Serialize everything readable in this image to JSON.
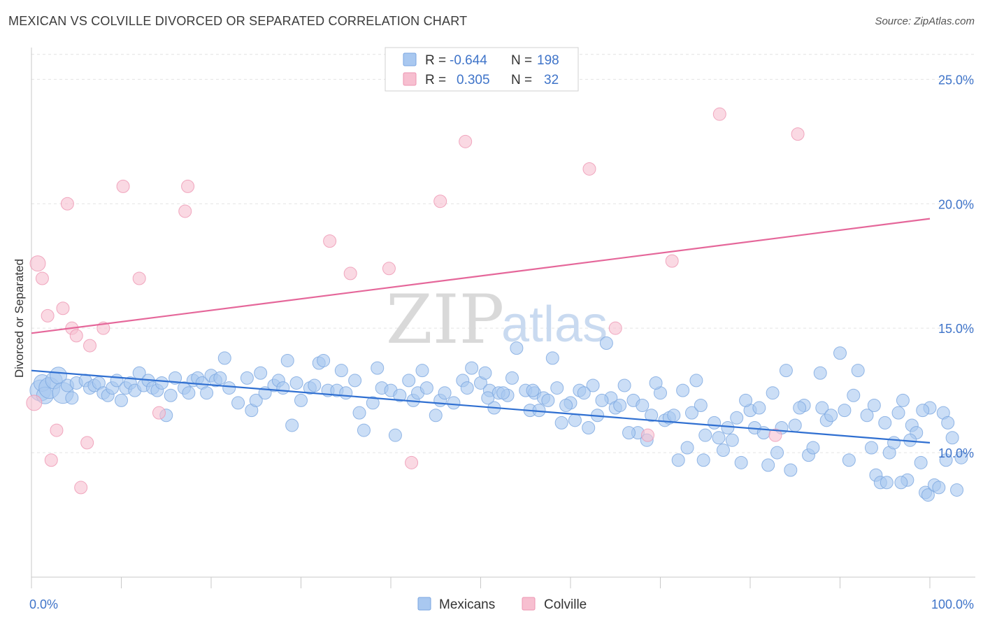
{
  "title": "MEXICAN VS COLVILLE DIVORCED OR SEPARATED CORRELATION CHART",
  "source": "Source: ZipAtlas.com",
  "colors": {
    "blue": "#a9c8f0",
    "blue_stroke": "#7aa6e0",
    "blue_line": "#2f6fd1",
    "pink": "#f7bfd0",
    "pink_stroke": "#ee95b2",
    "pink_line": "#e5679a",
    "axis_text": "#3f74c9"
  },
  "legend": {
    "r_label": "R =",
    "n_label": "N =",
    "rows": [
      {
        "r": "-0.644",
        "n": "198",
        "color": "blue"
      },
      {
        "r": "0.305",
        "n": "32",
        "color": "pink"
      }
    ]
  },
  "bottom_legend": [
    "Mexicans",
    "Colville"
  ],
  "watermark": {
    "zip": "ZIP",
    "atlas": "atlas"
  },
  "chart_data": {
    "type": "scatter",
    "xlabel": "",
    "ylabel": "Divorced or Separated",
    "xlim": [
      0,
      100
    ],
    "ylim": [
      5,
      26.5
    ],
    "x_ticks": [
      {
        "value": 0,
        "label": "0.0%"
      },
      {
        "value": 100,
        "label": "100.0%"
      }
    ],
    "y_ticks": [
      {
        "value": 10,
        "label": "10.0%"
      },
      {
        "value": 15,
        "label": "15.0%"
      },
      {
        "value": 20,
        "label": "20.0%"
      },
      {
        "value": 25,
        "label": "25.0%"
      }
    ],
    "series": [
      {
        "name": "Mexicans",
        "color": "blue",
        "trend": {
          "x": [
            0,
            100
          ],
          "y": [
            13.3,
            10.4
          ]
        },
        "points": [
          [
            1,
            12.5
          ],
          [
            1.2,
            12.8
          ],
          [
            1.5,
            12.3
          ],
          [
            2,
            12.6
          ],
          [
            2.5,
            12.9
          ],
          [
            3,
            13.1
          ],
          [
            3.5,
            12.4
          ],
          [
            4,
            12.7
          ],
          [
            4.5,
            12.2
          ],
          [
            5,
            12.8
          ],
          [
            6,
            12.9
          ],
          [
            6.5,
            12.6
          ],
          [
            7,
            12.7
          ],
          [
            7.5,
            12.8
          ],
          [
            8,
            12.4
          ],
          [
            8.5,
            12.3
          ],
          [
            9,
            12.6
          ],
          [
            9.5,
            12.9
          ],
          [
            10,
            12.1
          ],
          [
            10.5,
            12.6
          ],
          [
            11,
            12.8
          ],
          [
            11.5,
            12.5
          ],
          [
            12,
            13.2
          ],
          [
            12.5,
            12.7
          ],
          [
            13,
            12.9
          ],
          [
            13.5,
            12.6
          ],
          [
            14,
            12.5
          ],
          [
            14.5,
            12.8
          ],
          [
            15,
            11.5
          ],
          [
            15.5,
            12.3
          ],
          [
            16,
            13.0
          ],
          [
            17,
            12.6
          ],
          [
            17.5,
            12.4
          ],
          [
            18,
            12.9
          ],
          [
            18.5,
            13.0
          ],
          [
            19,
            12.8
          ],
          [
            19.5,
            12.4
          ],
          [
            20,
            13.1
          ],
          [
            20.5,
            12.9
          ],
          [
            21,
            13.0
          ],
          [
            21.5,
            13.8
          ],
          [
            22,
            12.6
          ],
          [
            23,
            12.0
          ],
          [
            24,
            13.0
          ],
          [
            24.5,
            11.7
          ],
          [
            25,
            12.1
          ],
          [
            25.5,
            13.2
          ],
          [
            26,
            12.4
          ],
          [
            27,
            12.7
          ],
          [
            27.5,
            12.9
          ],
          [
            28,
            12.6
          ],
          [
            28.5,
            13.7
          ],
          [
            29,
            11.1
          ],
          [
            29.5,
            12.8
          ],
          [
            30,
            12.1
          ],
          [
            31,
            12.6
          ],
          [
            31.5,
            12.7
          ],
          [
            32,
            13.6
          ],
          [
            32.5,
            13.7
          ],
          [
            33,
            12.5
          ],
          [
            34,
            12.5
          ],
          [
            34.5,
            13.3
          ],
          [
            35,
            12.4
          ],
          [
            36,
            12.9
          ],
          [
            36.5,
            11.6
          ],
          [
            37,
            10.9
          ],
          [
            38,
            12.0
          ],
          [
            38.5,
            13.4
          ],
          [
            39,
            12.6
          ],
          [
            40,
            12.5
          ],
          [
            40.5,
            10.7
          ],
          [
            41,
            12.3
          ],
          [
            42,
            12.9
          ],
          [
            42.5,
            12.1
          ],
          [
            43,
            12.4
          ],
          [
            43.5,
            13.3
          ],
          [
            44,
            12.6
          ],
          [
            45,
            11.5
          ],
          [
            45.5,
            12.1
          ],
          [
            46,
            12.4
          ],
          [
            47,
            12.0
          ],
          [
            48,
            12.9
          ],
          [
            48.5,
            12.6
          ],
          [
            49,
            13.4
          ],
          [
            50,
            12.8
          ],
          [
            50.5,
            13.2
          ],
          [
            51,
            12.5
          ],
          [
            51.5,
            11.8
          ],
          [
            52,
            12.4
          ],
          [
            53,
            12.3
          ],
          [
            53.5,
            13.0
          ],
          [
            54,
            14.2
          ],
          [
            55,
            12.5
          ],
          [
            55.5,
            11.7
          ],
          [
            56,
            12.4
          ],
          [
            56.5,
            11.7
          ],
          [
            57,
            12.2
          ],
          [
            58,
            13.8
          ],
          [
            58.5,
            12.6
          ],
          [
            59,
            11.2
          ],
          [
            60,
            12.0
          ],
          [
            60.5,
            11.3
          ],
          [
            61,
            12.5
          ],
          [
            62,
            11.0
          ],
          [
            62.5,
            12.7
          ],
          [
            63,
            11.5
          ],
          [
            64,
            14.4
          ],
          [
            64.5,
            12.2
          ],
          [
            65,
            11.8
          ],
          [
            65.5,
            11.9
          ],
          [
            66,
            12.7
          ],
          [
            67,
            12.1
          ],
          [
            67.5,
            10.8
          ],
          [
            68,
            11.9
          ],
          [
            68.5,
            10.5
          ],
          [
            69,
            11.5
          ],
          [
            70,
            12.4
          ],
          [
            70.5,
            11.3
          ],
          [
            71,
            11.4
          ],
          [
            72,
            9.7
          ],
          [
            72.5,
            12.5
          ],
          [
            73,
            10.2
          ],
          [
            73.5,
            11.6
          ],
          [
            74,
            12.9
          ],
          [
            74.5,
            11.9
          ],
          [
            75,
            10.7
          ],
          [
            76,
            11.2
          ],
          [
            77,
            10.1
          ],
          [
            77.5,
            11.0
          ],
          [
            78,
            10.5
          ],
          [
            78.5,
            11.4
          ],
          [
            79,
            9.6
          ],
          [
            80,
            11.7
          ],
          [
            80.5,
            11.0
          ],
          [
            81,
            11.8
          ],
          [
            81.5,
            10.8
          ],
          [
            82,
            9.5
          ],
          [
            82.5,
            12.4
          ],
          [
            83,
            10.0
          ],
          [
            84,
            13.3
          ],
          [
            84.5,
            9.3
          ],
          [
            85,
            11.1
          ],
          [
            86,
            11.9
          ],
          [
            86.5,
            9.9
          ],
          [
            87,
            10.2
          ],
          [
            88,
            11.8
          ],
          [
            88.5,
            11.3
          ],
          [
            89,
            11.5
          ],
          [
            90,
            14.0
          ],
          [
            90.5,
            11.7
          ],
          [
            91,
            9.7
          ],
          [
            91.5,
            12.3
          ],
          [
            92,
            13.3
          ],
          [
            93,
            11.5
          ],
          [
            93.5,
            10.2
          ],
          [
            94,
            9.1
          ],
          [
            94.5,
            8.8
          ],
          [
            95,
            11.2
          ],
          [
            95.5,
            10.0
          ],
          [
            96,
            10.4
          ],
          [
            96.5,
            11.6
          ],
          [
            97,
            12.1
          ],
          [
            97.5,
            8.9
          ],
          [
            98,
            11.1
          ],
          [
            98.5,
            10.8
          ],
          [
            99,
            9.6
          ],
          [
            99.5,
            8.4
          ],
          [
            100,
            11.8
          ],
          [
            96.8,
            8.8
          ],
          [
            99.8,
            8.3
          ],
          [
            100.5,
            8.7
          ],
          [
            101,
            8.6
          ],
          [
            101.5,
            11.6
          ],
          [
            101.8,
            9.7
          ],
          [
            102,
            11.2
          ],
          [
            102.5,
            10.6
          ],
          [
            103,
            8.5
          ],
          [
            103.5,
            9.8
          ],
          [
            95.2,
            8.8
          ],
          [
            97.8,
            10.5
          ],
          [
            99.2,
            11.7
          ],
          [
            93.8,
            11.9
          ],
          [
            87.8,
            13.2
          ],
          [
            85.5,
            11.8
          ],
          [
            83.5,
            11.0
          ],
          [
            79.5,
            12.1
          ],
          [
            76.5,
            10.6
          ],
          [
            74.8,
            9.7
          ],
          [
            71.5,
            11.5
          ],
          [
            69.5,
            12.8
          ],
          [
            66.5,
            10.8
          ],
          [
            63.5,
            12.1
          ],
          [
            61.5,
            12.4
          ],
          [
            59.5,
            11.9
          ],
          [
            57.5,
            12.1
          ],
          [
            55.8,
            12.5
          ],
          [
            52.5,
            12.4
          ],
          [
            50.8,
            12.2
          ]
        ]
      },
      {
        "name": "Colville",
        "color": "pink",
        "trend": {
          "x": [
            0,
            100
          ],
          "y": [
            14.8,
            19.4
          ]
        },
        "points": [
          [
            0.3,
            12.0
          ],
          [
            0.7,
            17.6
          ],
          [
            1.2,
            17.0
          ],
          [
            1.8,
            15.5
          ],
          [
            2.2,
            9.7
          ],
          [
            2.8,
            10.9
          ],
          [
            3.5,
            15.8
          ],
          [
            4,
            20.0
          ],
          [
            4.5,
            15.0
          ],
          [
            5,
            14.7
          ],
          [
            5.5,
            8.6
          ],
          [
            6.2,
            10.4
          ],
          [
            6.5,
            14.3
          ],
          [
            8,
            15.0
          ],
          [
            10.2,
            20.7
          ],
          [
            12,
            17.0
          ],
          [
            14.2,
            11.6
          ],
          [
            17.1,
            19.7
          ],
          [
            17.4,
            20.7
          ],
          [
            33.2,
            18.5
          ],
          [
            35.5,
            17.2
          ],
          [
            39.8,
            17.4
          ],
          [
            42.3,
            9.6
          ],
          [
            45.5,
            20.1
          ],
          [
            48.3,
            22.5
          ],
          [
            62.1,
            21.4
          ],
          [
            65,
            15.0
          ],
          [
            68.6,
            10.7
          ],
          [
            71.3,
            17.7
          ],
          [
            76.6,
            23.6
          ],
          [
            82.8,
            10.7
          ],
          [
            85.3,
            22.8
          ]
        ]
      }
    ]
  }
}
